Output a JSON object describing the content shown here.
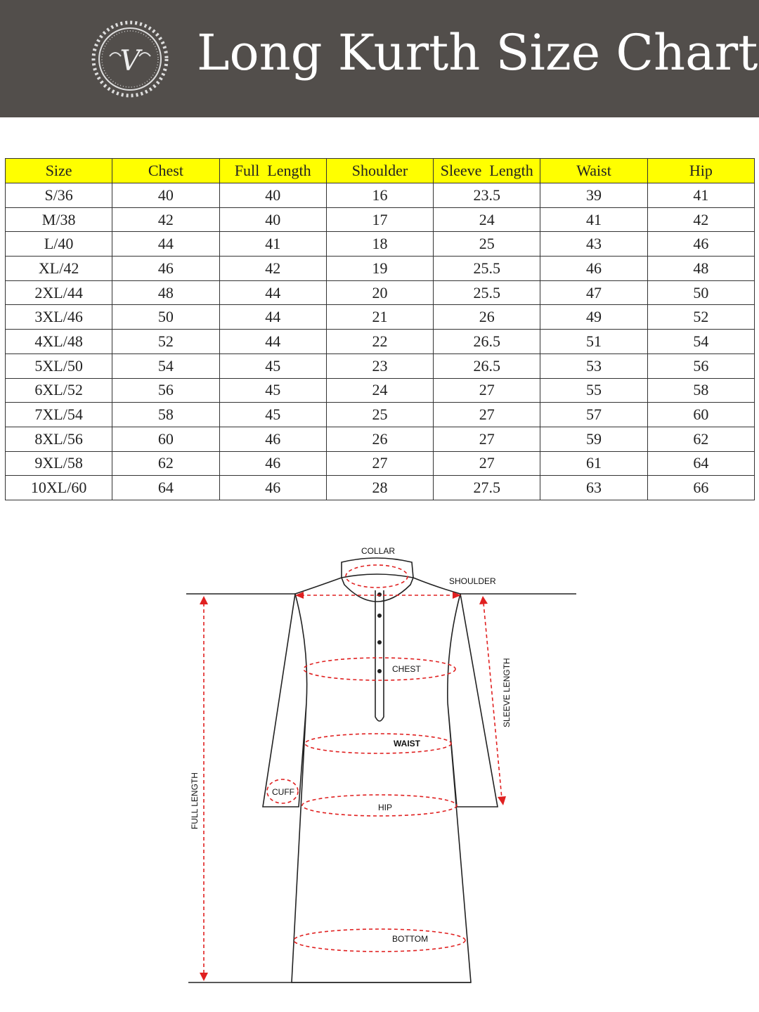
{
  "header": {
    "title": "Long Kurth Size Chart",
    "logo_text": "V",
    "background": "#524e4b"
  },
  "table": {
    "header_color": "#ffff00",
    "columns": [
      "Size",
      "Chest",
      "Full  Length",
      "Shoulder",
      "Sleeve  Length",
      "Waist",
      "Hip"
    ],
    "rows": [
      [
        "S/36",
        "40",
        "40",
        "16",
        "23.5",
        "39",
        "41"
      ],
      [
        "M/38",
        "42",
        "40",
        "17",
        "24",
        "41",
        "42"
      ],
      [
        "L/40",
        "44",
        "41",
        "18",
        "25",
        "43",
        "46"
      ],
      [
        "XL/42",
        "46",
        "42",
        "19",
        "25.5",
        "46",
        "48"
      ],
      [
        "2XL/44",
        "48",
        "44",
        "20",
        "25.5",
        "47",
        "50"
      ],
      [
        "3XL/46",
        "50",
        "44",
        "21",
        "26",
        "49",
        "52"
      ],
      [
        "4XL/48",
        "52",
        "44",
        "22",
        "26.5",
        "51",
        "54"
      ],
      [
        "5XL/50",
        "54",
        "45",
        "23",
        "26.5",
        "53",
        "56"
      ],
      [
        "6XL/52",
        "56",
        "45",
        "24",
        "27",
        "55",
        "58"
      ],
      [
        "7XL/54",
        "58",
        "45",
        "25",
        "27",
        "57",
        "60"
      ],
      [
        "8XL/56",
        "60",
        "46",
        "26",
        "27",
        "59",
        "62"
      ],
      [
        "9XL/58",
        "62",
        "46",
        "27",
        "27",
        "61",
        "64"
      ],
      [
        "10XL/60",
        "64",
        "46",
        "28",
        "27.5",
        "63",
        "66"
      ]
    ]
  },
  "diagram": {
    "measure_color": "#e02020",
    "labels": {
      "collar": "COLLAR",
      "shoulder": "SHOULDER",
      "chest": "CHEST",
      "sleeve_length": "SLEEVE LENGTH",
      "waist": "WAIST",
      "cuff": "CUFF",
      "hip": "HIP",
      "full_length": "FULL LENGTH",
      "bottom": "BOTTOM"
    }
  }
}
